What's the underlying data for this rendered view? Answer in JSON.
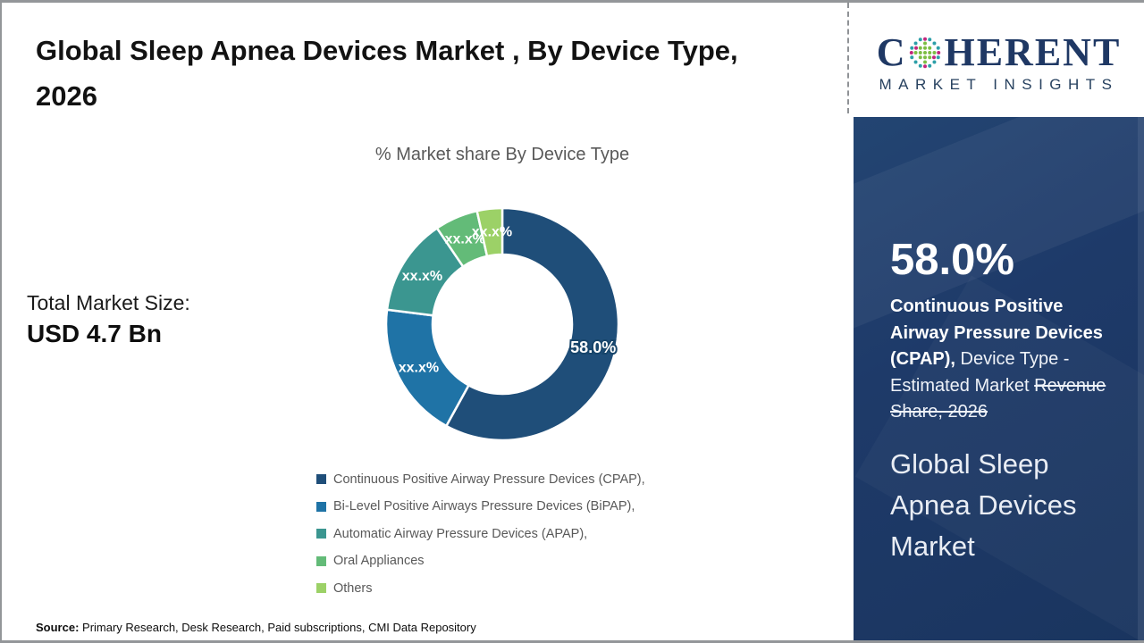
{
  "header": {
    "title": "Global Sleep Apnea Devices Market , By Device Type, 2026"
  },
  "total_market": {
    "label": "Total Market Size:",
    "value": "USD 4.7 Bn"
  },
  "source": {
    "label": "Source:",
    "text": " Primary Research, Desk Research, Paid subscriptions, CMI Data Repository"
  },
  "logo": {
    "prefix": "C",
    "suffix": "HERENT",
    "tagline": "MARKET INSIGHTS",
    "text_color": "#1F3864",
    "dot_colors": {
      "teal": "#2D9FA8",
      "green": "#7CBE44",
      "magenta": "#C2267E"
    }
  },
  "sidebar": {
    "stat_value": "58.0%",
    "stat_bold": "Continuous Positive Airway Pressure Devices (CPAP),",
    "stat_mid": " Device Type - Estimated Market ",
    "stat_strike": "Revenue Share, 2026",
    "panel_title": "Global Sleep Apnea Devices Market",
    "panel_color": "#1E3A69"
  },
  "chart_data": {
    "type": "pie",
    "subtype": "donut",
    "title": "% Market share By Device Type",
    "hole_ratio": 0.6,
    "legend_position": "bottom-left",
    "start_angle_deg": 0,
    "direction": "clockwise",
    "segments": [
      {
        "name": "Continuous Positive Airway Pressure Devices (CPAP)",
        "legend_label": "Continuous Positive Airway Pressure Devices (CPAP),",
        "value": 58.0,
        "label": "58.0%",
        "color": "#1F4E79"
      },
      {
        "name": "Bi-Level Positive Airways Pressure Devices (BiPAP)",
        "legend_label": "Bi-Level Positive Airways Pressure Devices (BiPAP),",
        "value": 19.0,
        "label": "xx.x%",
        "color": "#1F73A6"
      },
      {
        "name": "Automatic Airway Pressure Devices (APAP)",
        "legend_label": "Automatic Airway Pressure Devices (APAP),",
        "value": 13.5,
        "label": "xx.x%",
        "color": "#3B9690"
      },
      {
        "name": "Oral Appliances",
        "legend_label": "Oral Appliances",
        "value": 6.0,
        "label": "xx.x%",
        "color": "#63BB78"
      },
      {
        "name": "Others",
        "legend_label": "Others",
        "value": 3.5,
        "label": "xx.x%",
        "color": "#9CD167"
      }
    ]
  }
}
